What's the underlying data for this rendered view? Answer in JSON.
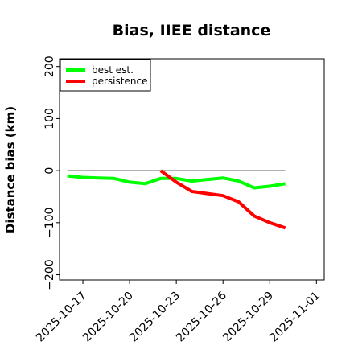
{
  "chart_data": {
    "type": "line",
    "title": "Bias, IIEE distance",
    "xlabel": "",
    "ylabel": "Distance bias (km)",
    "x_is_date": true,
    "xlim": [
      "2025-10-15T12:00",
      "2025-11-01T12:00"
    ],
    "ylim": [
      -210,
      215
    ],
    "yticks": [
      200,
      100,
      0,
      -100,
      -200
    ],
    "ytick_labels": [
      "200",
      "100",
      "0",
      "−100",
      "−200"
    ],
    "xticks": [
      "2025-10-17",
      "2025-10-20",
      "2025-10-23",
      "2025-10-26",
      "2025-10-29",
      "2025-11-01"
    ],
    "xtick_labels": [
      "2025-10-17",
      "2025-10-20",
      "2025-10-23",
      "2025-10-26",
      "2025-10-29",
      "2025-11-01"
    ],
    "grid": false,
    "legend_position": "top-left",
    "reference_line": {
      "y": 0,
      "x_start": "2025-10-16",
      "x_end": "2025-10-30",
      "color": "#808080"
    },
    "series": [
      {
        "name": "best est.",
        "color": "#00ff00",
        "x": [
          "2025-10-16",
          "2025-10-17",
          "2025-10-18",
          "2025-10-19",
          "2025-10-20",
          "2025-10-21",
          "2025-10-22",
          "2025-10-23",
          "2025-10-24",
          "2025-10-25",
          "2025-10-26",
          "2025-10-27",
          "2025-10-28",
          "2025-10-29",
          "2025-10-30"
        ],
        "values": [
          -10,
          -13,
          -14,
          -15,
          -22,
          -25,
          -15,
          -15,
          -20,
          -17,
          -14,
          -20,
          -33,
          -30,
          -25
        ]
      },
      {
        "name": "persistence",
        "color": "#ff0000",
        "x": [
          "2025-10-22",
          "2025-10-23",
          "2025-10-24",
          "2025-10-25",
          "2025-10-26",
          "2025-10-27",
          "2025-10-28",
          "2025-10-29",
          "2025-10-30"
        ],
        "values": [
          0,
          -22,
          -40,
          -44,
          -48,
          -60,
          -87,
          -100,
          -110
        ]
      }
    ]
  }
}
